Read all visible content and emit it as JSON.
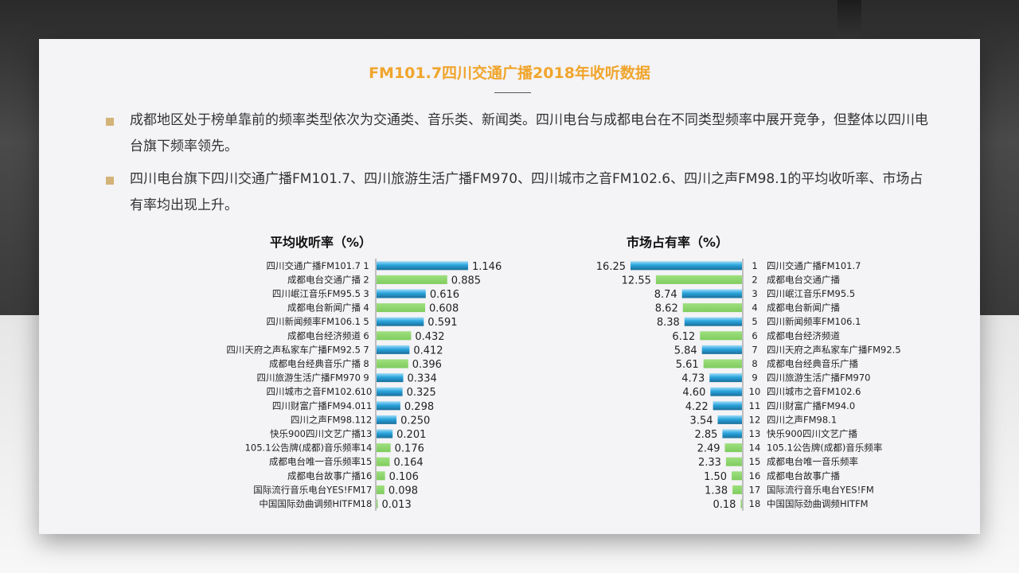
{
  "title": "FM101.7四川交通广播2018年收听数据",
  "bullets": [
    "成都地区处于榜单靠前的频率类型依次为交通类、音乐类、新闻类。四川电台与成都电台在不同类型频率中展开竞争，但整体以四川电台旗下频率领先。",
    "四川电台旗下四川交通广播FM101.7、四川旅游生活广播FM970、四川城市之音FM102.6、四川之声FM98.1的平均收听率、市场占有率均出现上升。"
  ],
  "colors": {
    "title": "#f0a52c",
    "blue_bar": "#29a3dc",
    "green_bar": "#7fcc5e",
    "bullet": "#d3b377"
  },
  "chart_data": [
    {
      "type": "bar",
      "orientation": "horizontal",
      "title": "平均收听率（%）",
      "ranks": [
        "1",
        "2",
        "3",
        "4",
        "5",
        "6",
        "7",
        "8",
        "9",
        "10",
        "11",
        "12",
        "13",
        "14",
        "15",
        "16",
        "17",
        "18"
      ],
      "categories": [
        "四川交通广播FM101.7",
        "成都电台交通广播",
        "四川岷江音乐FM95.5",
        "成都电台新闻广播",
        "四川新闻频率FM106.1",
        "成都电台经济频道",
        "四川天府之声私家车广播FM92.5",
        "成都电台经典音乐广播",
        "四川旅游生活广播FM970",
        "四川城市之音FM102.6",
        "四川财富广播FM94.0",
        "四川之声FM98.1",
        "快乐900四川文艺广播",
        "105.1公告牌(成都)音乐频率",
        "成都电台唯一音乐频率",
        "成都电台故事广播",
        "国际流行音乐电台YES!FM",
        "中国国际劲曲调频HITFM"
      ],
      "values": [
        1.146,
        0.885,
        0.616,
        0.608,
        0.591,
        0.432,
        0.412,
        0.396,
        0.334,
        0.325,
        0.298,
        0.25,
        0.201,
        0.176,
        0.164,
        0.106,
        0.098,
        0.013
      ],
      "labels": [
        "1.146",
        "0.885",
        "0.616",
        "0.608",
        "0.591",
        "0.432",
        "0.412",
        "0.396",
        "0.334",
        "0.325",
        "0.298",
        "0.250",
        "0.201",
        "0.176",
        "0.164",
        "0.106",
        "0.098",
        "0.013"
      ],
      "bar_colors": [
        "blue",
        "green",
        "blue",
        "green",
        "blue",
        "green",
        "blue",
        "green",
        "blue",
        "blue",
        "blue",
        "blue",
        "blue",
        "green",
        "green",
        "green",
        "green",
        "green"
      ],
      "xlim": [
        0,
        1.146
      ]
    },
    {
      "type": "bar",
      "orientation": "horizontal",
      "title": "市场占有率（%）",
      "ranks": [
        "1",
        "2",
        "3",
        "4",
        "5",
        "6",
        "7",
        "8",
        "9",
        "10",
        "11",
        "12",
        "13",
        "14",
        "15",
        "16",
        "17",
        "18"
      ],
      "categories": [
        "四川交通广播FM101.7",
        "成都电台交通广播",
        "四川岷江音乐FM95.5",
        "成都电台新闻广播",
        "四川新闻频率FM106.1",
        "成都电台经济频道",
        "四川天府之声私家车广播FM92.5",
        "成都电台经典音乐广播",
        "四川旅游生活广播FM970",
        "四川城市之音FM102.6",
        "四川财富广播FM94.0",
        "四川之声FM98.1",
        "快乐900四川文艺广播",
        "105.1公告牌(成都)音乐频率",
        "成都电台唯一音乐频率",
        "成都电台故事广播",
        "国际流行音乐电台YES!FM",
        "中国国际劲曲调频HITFM"
      ],
      "values": [
        16.25,
        12.55,
        8.74,
        8.62,
        8.38,
        6.12,
        5.84,
        5.61,
        4.73,
        4.6,
        4.22,
        3.54,
        2.85,
        2.49,
        2.33,
        1.5,
        1.38,
        0.18
      ],
      "labels": [
        "16.25",
        "12.55",
        "8.74",
        "8.62",
        "8.38",
        "6.12",
        "5.84",
        "5.61",
        "4.73",
        "4.60",
        "4.22",
        "3.54",
        "2.85",
        "2.49",
        "2.33",
        "1.50",
        "1.38",
        "0.18"
      ],
      "bar_colors": [
        "blue",
        "green",
        "blue",
        "green",
        "blue",
        "green",
        "blue",
        "green",
        "blue",
        "blue",
        "blue",
        "blue",
        "blue",
        "green",
        "green",
        "green",
        "green",
        "green"
      ],
      "xlim": [
        0,
        16.25
      ]
    }
  ]
}
